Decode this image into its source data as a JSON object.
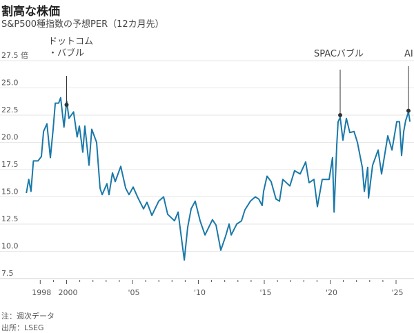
{
  "title": "割高な株価",
  "subtitle": "S&P500種指数の予想PER（12カ月先）",
  "footnote": "注：週次データ",
  "source": "出所：LSEG",
  "colors": {
    "line": "#1a78a8",
    "annotation": "#333333",
    "grid": "#e6e6e6"
  },
  "chart_data": {
    "type": "line",
    "title": "割高な株価",
    "subtitle": "S&P500種指数の予想PER（12カ月先）",
    "ylabel": "",
    "y_unit_label": "倍",
    "ylim": [
      7.5,
      27.5
    ],
    "yticks": [
      7.5,
      10.0,
      12.5,
      15.0,
      17.5,
      20.0,
      22.5,
      25.0,
      27.5
    ],
    "ytick_labels": [
      "7.5",
      "10.0",
      "12.5",
      "15.0",
      "17.5",
      "20.0",
      "22.5",
      "25.0",
      "27.5 倍"
    ],
    "xlim": [
      1996.9,
      2026.1
    ],
    "xticks": [
      1998,
      2000,
      2005,
      2010,
      2015,
      2020,
      2025
    ],
    "xtick_labels": [
      "1998",
      "2000",
      "'05",
      "'10",
      "'15",
      "'20",
      "'25"
    ],
    "minor_xticks": [
      1999,
      2001,
      2002,
      2003,
      2004,
      2006,
      2007,
      2008,
      2009,
      2011,
      2012,
      2013,
      2014,
      2016,
      2017,
      2018,
      2019,
      2021,
      2022,
      2023,
      2024
    ],
    "grid": true,
    "x": [
      1996.95,
      1997.13,
      1997.3,
      1997.48,
      1997.83,
      1998.09,
      1998.25,
      1998.51,
      1998.77,
      1998.98,
      1999.14,
      1999.4,
      1999.55,
      1999.8,
      2000.01,
      2000.18,
      2000.53,
      2000.8,
      2000.97,
      2001.23,
      2001.39,
      2001.7,
      2001.91,
      2002.28,
      2002.54,
      2002.7,
      2003.06,
      2003.22,
      2003.48,
      2003.69,
      2004.11,
      2004.48,
      2004.74,
      2005.05,
      2005.42,
      2005.84,
      2006.1,
      2006.47,
      2006.99,
      2007.36,
      2007.67,
      2008.19,
      2008.46,
      2008.93,
      2009.19,
      2009.45,
      2009.76,
      2010.13,
      2010.5,
      2011.07,
      2011.34,
      2011.7,
      2012.07,
      2012.33,
      2012.49,
      2012.91,
      2013.27,
      2013.53,
      2013.95,
      2014.32,
      2014.58,
      2014.84,
      2014.95,
      2015.21,
      2015.52,
      2015.89,
      2016.15,
      2016.41,
      2016.94,
      2017.3,
      2017.72,
      2018.14,
      2018.4,
      2018.77,
      2019.03,
      2019.4,
      2019.92,
      2020.18,
      2020.3,
      2020.5,
      2020.6,
      2020.76,
      2020.97,
      2021.23,
      2021.49,
      2021.81,
      2022.07,
      2022.44,
      2022.59,
      2022.85,
      2022.91,
      2023.22,
      2023.64,
      2023.9,
      2024.37,
      2024.69,
      2025.05,
      2025.26,
      2025.42,
      2025.58,
      2025.73,
      2025.94,
      2026.05
    ],
    "series": [
      {
        "values": [
          15.35,
          16.6,
          15.5,
          18.3,
          18.3,
          18.7,
          21.0,
          21.7,
          18.6,
          21.2,
          23.6,
          23.6,
          24.1,
          21.4,
          23.8,
          22.2,
          22.8,
          20.5,
          21.5,
          19.1,
          21.5,
          17.9,
          21.2,
          20.0,
          15.8,
          15.2,
          16.2,
          15.2,
          17.2,
          16.4,
          17.8,
          15.8,
          15.2,
          15.9,
          14.9,
          13.9,
          14.5,
          13.3,
          14.6,
          15.0,
          13.4,
          12.8,
          13.6,
          9.2,
          12.2,
          13.9,
          14.6,
          12.8,
          11.5,
          12.9,
          12.4,
          10.1,
          11.4,
          12.5,
          11.5,
          12.5,
          12.8,
          13.8,
          14.6,
          15.0,
          14.8,
          14.2,
          15.5,
          16.9,
          16.4,
          14.8,
          14.6,
          16.6,
          16.0,
          17.4,
          17.1,
          18.2,
          16.3,
          16.6,
          14.1,
          16.6,
          16.6,
          18.6,
          13.6,
          19.8,
          21.9,
          22.3,
          20.2,
          22.2,
          20.9,
          21.0,
          20.0,
          17.7,
          15.5,
          17.7,
          14.9,
          17.9,
          19.3,
          17.1,
          20.6,
          19.3,
          21.9,
          21.9,
          18.8,
          21.0,
          22.0,
          22.8,
          21.9
        ]
      }
    ],
    "annotations": [
      {
        "label_lines": [
          "ドットコム",
          "・バブル"
        ],
        "x": 2000.0,
        "y": 23.45
      },
      {
        "label_lines": [
          "SPACバブル"
        ],
        "x": 2020.76,
        "y": 22.5
      },
      {
        "label_lines": [
          "AI"
        ],
        "x": 2025.94,
        "y": 22.9
      }
    ]
  }
}
